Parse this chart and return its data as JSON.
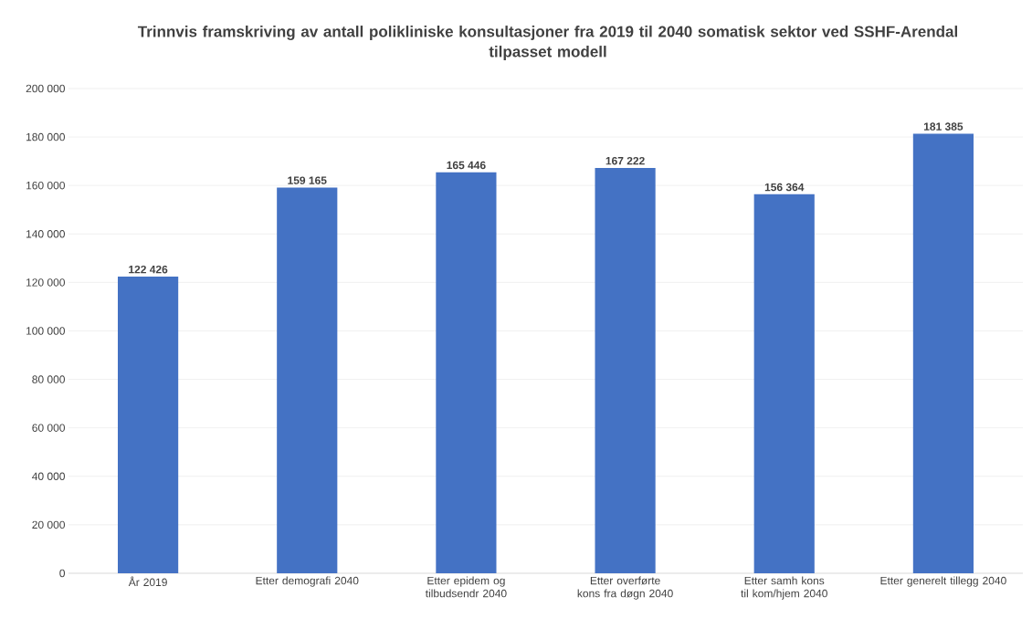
{
  "chart_data": {
    "type": "bar",
    "title": "Trinnvis framskriving av antall polikliniske konsultasjoner fra 2019 til 2040 somatisk sektor ved SSHF-Arendal tilpasset modell",
    "categories": [
      "År 2019",
      "Etter demografi 2040",
      "Etter epidem og tilbudsendr 2040",
      "Etter overførte kons fra døgn 2040",
      "Etter samh kons til kom/hjem 2040",
      "Etter generelt tillegg 2040"
    ],
    "values": [
      122426,
      159165,
      165446,
      167222,
      156364,
      181385
    ],
    "value_labels": [
      "122 426",
      "159 165",
      "165 446",
      "167 222",
      "156 364",
      "181 385"
    ],
    "color": "#4472c4",
    "ylim": [
      0,
      200000
    ],
    "yticks": [
      {
        "value": 0,
        "label": "0"
      },
      {
        "value": 20000,
        "label": "20 000"
      },
      {
        "value": 40000,
        "label": "40 000"
      },
      {
        "value": 60000,
        "label": "60 000"
      },
      {
        "value": 80000,
        "label": "80 000"
      },
      {
        "value": 100000,
        "label": "100 000"
      },
      {
        "value": 120000,
        "label": "120 000"
      },
      {
        "value": 140000,
        "label": "140 000"
      },
      {
        "value": 160000,
        "label": "160 000"
      },
      {
        "value": 180000,
        "label": "180 000"
      },
      {
        "value": 200000,
        "label": "200 000"
      }
    ],
    "grid": "y"
  }
}
